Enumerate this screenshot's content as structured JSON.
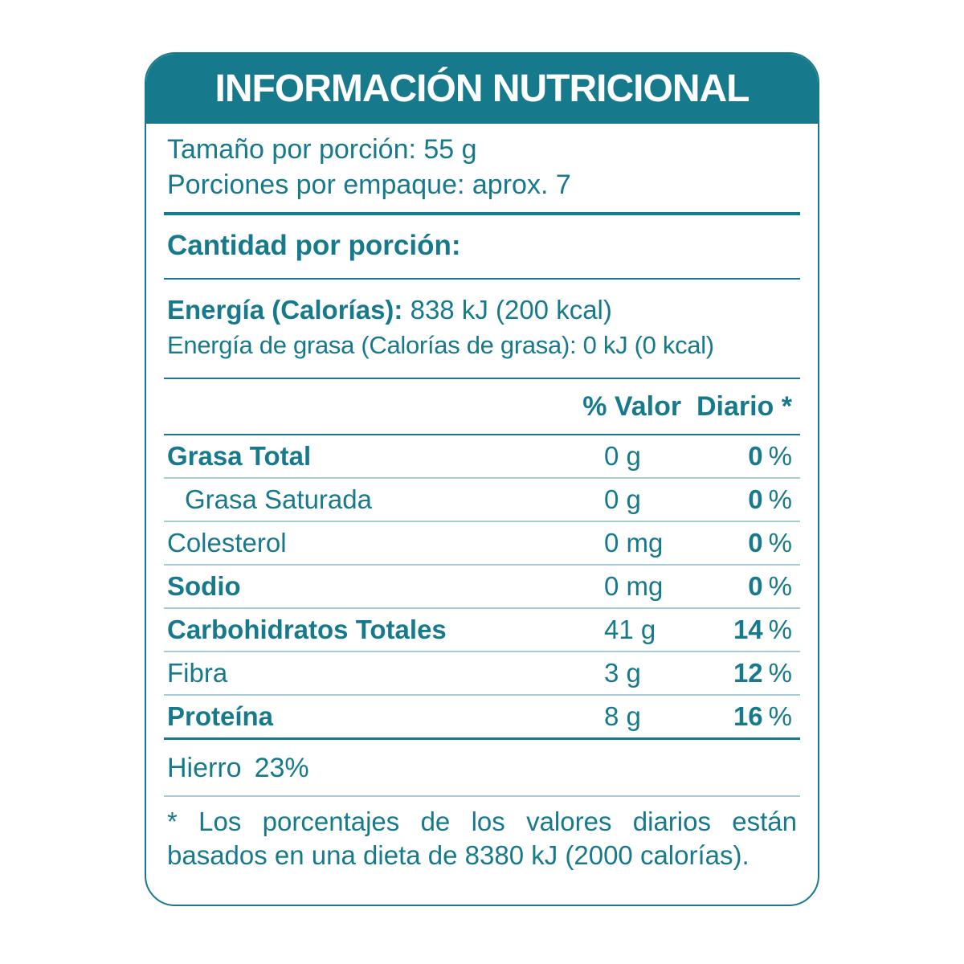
{
  "label": {
    "title": "INFORMACIÓN NUTRICIONAL",
    "serving": {
      "line1": "Tamaño por porción: 55 g",
      "line2": "Porciones por empaque: aprox. 7"
    },
    "amount_header": "Cantidad por porción:",
    "energy": {
      "label": "Energía (Calorías):",
      "value": "838 kJ (200 kcal)"
    },
    "energy_fat": {
      "label": "Energía de grasa (Calorías de grasa):",
      "value": "0 kJ (0 kcal)"
    },
    "dv_header": "% Valor  Diario *",
    "units": {
      "percent": "%"
    },
    "rows": [
      {
        "label": "Grasa Total",
        "amount": "0 g",
        "dv": "0"
      },
      {
        "label": "Grasa Saturada",
        "amount": "0 g",
        "dv": "0"
      },
      {
        "label": "Colesterol",
        "amount": "0 mg",
        "dv": "0"
      },
      {
        "label": "Sodio",
        "amount": "0 mg",
        "dv": "0"
      },
      {
        "label": "Carbohidratos Totales",
        "amount": "41 g",
        "dv": "14"
      },
      {
        "label": "Fibra",
        "amount": "3 g",
        "dv": "12"
      },
      {
        "label": "Proteína",
        "amount": "8 g",
        "dv": "16"
      }
    ],
    "minerals": {
      "label": "Hierro",
      "value": "23%"
    },
    "footnote": "* Los porcentajes de los valores diarios están basados en una dieta de 8380 kJ (2000 calorías)."
  },
  "colors": {
    "teal": "#177a8c",
    "divider_light": "#a8ccd5",
    "title_text": "#ffffff",
    "background": "#ffffff"
  }
}
